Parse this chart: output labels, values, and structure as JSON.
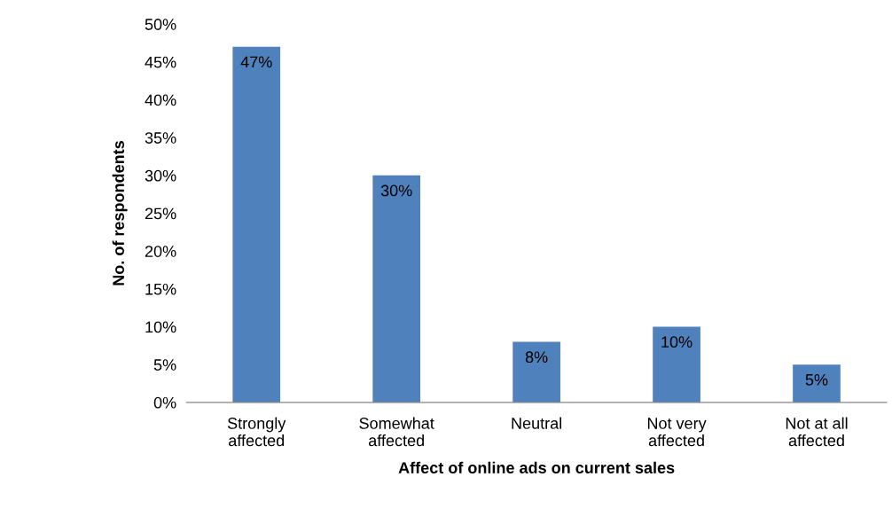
{
  "chart_data": {
    "type": "bar",
    "xlabel": "Affect of online ads on current sales",
    "ylabel": "No. of respondents",
    "categories": [
      "Strongly\naffected",
      "Somewhat\naffected",
      "Neutral",
      "Not very\naffected",
      "Not at all\naffected"
    ],
    "values": [
      47,
      30,
      8,
      10,
      5
    ],
    "color": "#4f81bd",
    "value_labels": [
      "47%",
      "30%",
      "8%",
      "10%",
      "5%"
    ],
    "ylim": [
      0,
      50
    ],
    "yticks": [
      {
        "value": 0,
        "label": "0%"
      },
      {
        "value": 5,
        "label": "5%"
      },
      {
        "value": 10,
        "label": "10%"
      },
      {
        "value": 15,
        "label": "15%"
      },
      {
        "value": 20,
        "label": "20%"
      },
      {
        "value": 25,
        "label": "25%"
      },
      {
        "value": 30,
        "label": "30%"
      },
      {
        "value": 35,
        "label": "35%"
      },
      {
        "value": 40,
        "label": "40%"
      },
      {
        "value": 45,
        "label": "45%"
      },
      {
        "value": 50,
        "label": "50%"
      }
    ],
    "grid": false,
    "legend": false
  }
}
